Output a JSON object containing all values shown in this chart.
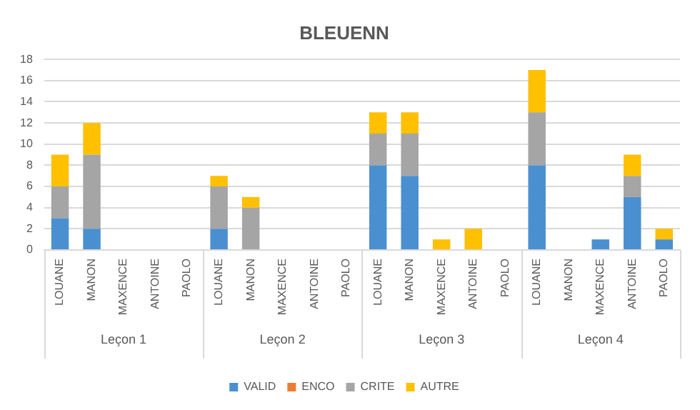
{
  "chart_data": {
    "type": "bar",
    "title": "BLEUENN",
    "stacked": true,
    "grid": "y",
    "legend": "bottom",
    "categories": [
      "LOUANE",
      "MANON",
      "MAXENCE",
      "ANTOINE",
      "PAOLO",
      "LOUANE",
      "MANON",
      "MAXENCE",
      "ANTOINE",
      "PAOLO",
      "LOUANE",
      "MANON",
      "MAXENCE",
      "ANTOINE",
      "PAOLO",
      "LOUANE",
      "MANON",
      "MAXENCE",
      "ANTOINE",
      "PAOLO"
    ],
    "annotations": [
      "Leçon 1",
      "Leçon 2",
      "Leçon 3",
      "Leçon 4"
    ],
    "ylim": [
      0,
      18
    ],
    "yticks": [
      0,
      2,
      4,
      6,
      8,
      10,
      12,
      14,
      16,
      18
    ],
    "series": [
      {
        "name": "VALID",
        "color": "#4a90d0",
        "values": [
          3,
          2,
          0,
          0,
          0,
          2,
          0,
          0,
          0,
          0,
          8,
          7,
          0,
          0,
          0,
          8,
          0,
          1,
          5,
          1
        ]
      },
      {
        "name": "ENCO",
        "color": "#ed7d31",
        "values": [
          0,
          0,
          0,
          0,
          0,
          0,
          0,
          0,
          0,
          0,
          0,
          0,
          0,
          0,
          0,
          0,
          0,
          0,
          0,
          0
        ]
      },
      {
        "name": "CRITE",
        "color": "#a5a5a5",
        "values": [
          3,
          7,
          0,
          0,
          0,
          4,
          4,
          0,
          0,
          0,
          3,
          4,
          0,
          0,
          0,
          5,
          0,
          0,
          2,
          0
        ]
      },
      {
        "name": "AUTRE",
        "color": "#ffc000",
        "values": [
          3,
          3,
          0,
          0,
          0,
          1,
          1,
          0,
          0,
          0,
          2,
          2,
          1,
          2,
          0,
          4,
          0,
          0,
          2,
          1
        ]
      }
    ]
  }
}
